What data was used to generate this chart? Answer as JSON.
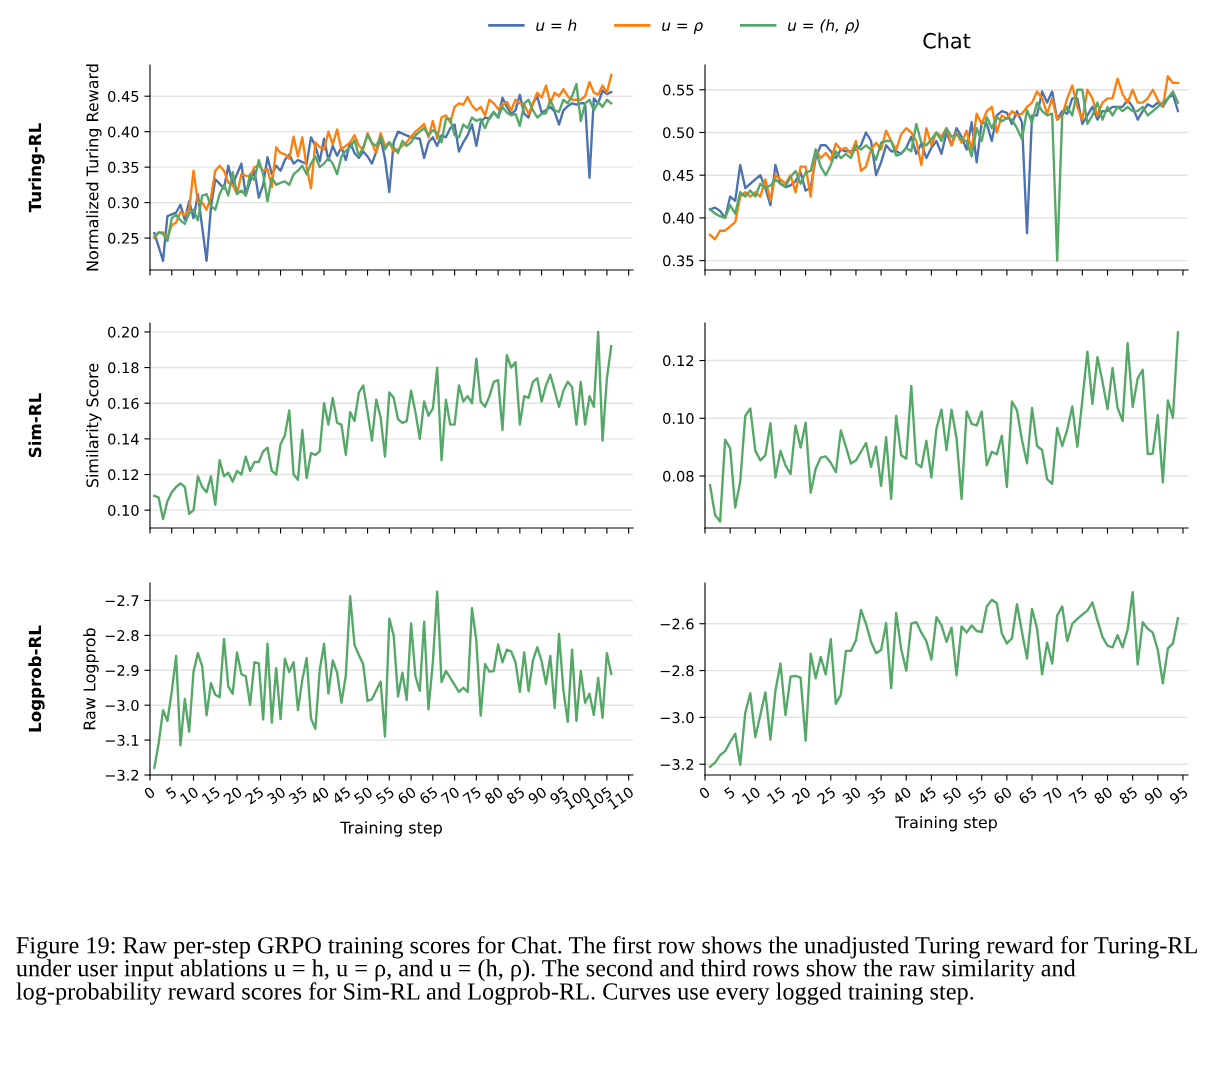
{
  "chart_data": [
    {
      "type": "line",
      "ylabel": "Normalized Turing Reward",
      "annotations": [
        "Turing-RL",
        "Figure 19: Raw per-step GRPO training scores for Chat. The first row shows the unadjusted Turing reward for Turing-RL under user input ablations u = h, u = ρ, and u = (h, ρ). The second and third rows show the raw similarity and log-probability reward scores for Sim-RL and Logprob-RL. Curves use every logged training step."
      ],
      "xlim": [
        0,
        111
      ],
      "xticks": [
        0,
        5,
        10,
        15,
        20,
        25,
        30,
        35,
        40,
        45,
        50,
        55,
        60,
        65,
        70,
        75,
        80,
        85,
        90,
        95,
        100,
        105,
        110
      ],
      "ylim": [
        0.205,
        0.494
      ],
      "yticks": [
        {
          "value": 0.25,
          "label": "0.25"
        },
        {
          "value": 0.3,
          "label": "0.30"
        },
        {
          "value": 0.35,
          "label": "0.35"
        },
        {
          "value": 0.4,
          "label": "0.40"
        },
        {
          "value": 0.45,
          "label": "0.45"
        }
      ],
      "grid": "y",
      "legend": "top",
      "tick_labels": "y",
      "x": [
        1,
        2,
        3,
        4,
        5,
        6,
        7,
        8,
        9,
        10,
        11,
        12,
        13,
        14,
        15,
        16,
        17,
        18,
        19,
        20,
        21,
        22,
        23,
        24,
        25,
        26,
        27,
        28,
        29,
        30,
        31,
        32,
        33,
        34,
        35,
        36,
        37,
        38,
        39,
        40,
        41,
        42,
        43,
        44,
        45,
        46,
        47,
        48,
        49,
        50,
        51,
        52,
        53,
        54,
        55,
        56,
        57,
        58,
        59,
        60,
        61,
        62,
        63,
        64,
        65,
        66,
        67,
        68,
        69,
        70,
        71,
        72,
        73,
        74,
        75,
        76,
        77,
        78,
        79,
        80,
        81,
        82,
        83,
        84,
        85,
        86,
        87,
        88,
        89,
        90,
        91,
        92,
        93,
        94,
        95,
        96,
        97,
        98,
        99,
        100,
        101,
        102,
        103,
        104,
        105,
        106
      ],
      "series": [
        {
          "name": "u = h",
          "color": "#4c72b0",
          "x": [
            1,
            3,
            4,
            6,
            7,
            8,
            9,
            10,
            11,
            13,
            14,
            15,
            17,
            18,
            19,
            21,
            22,
            23,
            24,
            25,
            26,
            27,
            28,
            29,
            30,
            31,
            32,
            33,
            34,
            35,
            36,
            37,
            38,
            39,
            40,
            41,
            42,
            43,
            44,
            45,
            46,
            47,
            48,
            49,
            50,
            51,
            52,
            53,
            54,
            55,
            56,
            57,
            60,
            62,
            63,
            64,
            65,
            66,
            67,
            68,
            69,
            70,
            71,
            72,
            73,
            74,
            75,
            76,
            77,
            78,
            79,
            80,
            81,
            82,
            83,
            84,
            85,
            86,
            87,
            88,
            89,
            90,
            91,
            92,
            93,
            94,
            95,
            96,
            97,
            98,
            99,
            100,
            101,
            102,
            103,
            104,
            105,
            106
          ],
          "values": [
            0.257,
            0.218,
            0.281,
            0.286,
            0.297,
            0.276,
            0.302,
            0.278,
            0.312,
            0.218,
            0.293,
            0.333,
            0.32,
            0.352,
            0.326,
            0.355,
            0.31,
            0.33,
            0.345,
            0.307,
            0.325,
            0.364,
            0.34,
            0.352,
            0.345,
            0.36,
            0.368,
            0.355,
            0.36,
            0.357,
            0.355,
            0.392,
            0.38,
            0.358,
            0.39,
            0.36,
            0.38,
            0.366,
            0.378,
            0.36,
            0.385,
            0.37,
            0.363,
            0.372,
            0.365,
            0.355,
            0.372,
            0.39,
            0.362,
            0.315,
            0.385,
            0.4,
            0.392,
            0.39,
            0.363,
            0.385,
            0.392,
            0.38,
            0.395,
            0.392,
            0.405,
            0.41,
            0.372,
            0.385,
            0.395,
            0.41,
            0.38,
            0.413,
            0.42,
            0.418,
            0.427,
            0.42,
            0.448,
            0.435,
            0.425,
            0.43,
            0.452,
            0.425,
            0.42,
            0.44,
            0.45,
            0.427,
            0.43,
            0.435,
            0.428,
            0.41,
            0.43,
            0.436,
            0.44,
            0.438,
            0.44,
            0.44,
            0.335,
            0.447,
            0.44,
            0.458,
            0.453,
            0.456
          ]
        },
        {
          "name": "u = ρ",
          "color": "#ff7f0e",
          "values": [
            0.25,
            0.258,
            0.258,
            0.25,
            0.268,
            0.272,
            0.287,
            0.282,
            0.29,
            0.345,
            0.3,
            0.3,
            0.29,
            0.307,
            0.345,
            0.352,
            0.345,
            0.328,
            0.325,
            0.312,
            0.34,
            0.338,
            0.337,
            0.35,
            0.352,
            0.345,
            0.347,
            0.322,
            0.378,
            0.37,
            0.368,
            0.362,
            0.393,
            0.365,
            0.392,
            0.35,
            0.32,
            0.385,
            0.378,
            0.375,
            0.4,
            0.382,
            0.403,
            0.375,
            0.38,
            0.385,
            0.395,
            0.38,
            0.375,
            0.398,
            0.384,
            0.37,
            0.398,
            0.38,
            0.385,
            0.372,
            0.375,
            0.38,
            0.385,
            0.393,
            0.4,
            0.405,
            0.411,
            0.392,
            0.415,
            0.39,
            0.42,
            0.423,
            0.413,
            0.435,
            0.44,
            0.438,
            0.449,
            0.437,
            0.43,
            0.435,
            0.423,
            0.445,
            0.44,
            0.432,
            0.437,
            0.442,
            0.43,
            0.445,
            0.44,
            0.438,
            0.425,
            0.44,
            0.455,
            0.448,
            0.465,
            0.44,
            0.455,
            0.45,
            0.46,
            0.45,
            0.445,
            0.445,
            0.445,
            0.45,
            0.47,
            0.455,
            0.452,
            0.465,
            0.455,
            0.48
          ]
        },
        {
          "name": "u = (h, ρ)",
          "color": "#55a868",
          "values": [
            0.252,
            0.258,
            0.256,
            0.246,
            0.278,
            0.283,
            0.275,
            0.27,
            0.285,
            0.29,
            0.275,
            0.31,
            0.312,
            0.295,
            0.29,
            0.312,
            0.325,
            0.31,
            0.343,
            0.312,
            0.317,
            0.31,
            0.34,
            0.332,
            0.36,
            0.34,
            0.302,
            0.335,
            0.325,
            0.328,
            0.33,
            0.325,
            0.34,
            0.345,
            0.352,
            0.34,
            0.355,
            0.365,
            0.35,
            0.355,
            0.363,
            0.355,
            0.34,
            0.365,
            0.373,
            0.378,
            0.388,
            0.366,
            0.378,
            0.395,
            0.384,
            0.38,
            0.393,
            0.375,
            0.385,
            0.378,
            0.37,
            0.387,
            0.38,
            0.385,
            0.395,
            0.4,
            0.405,
            0.395,
            0.402,
            0.398,
            0.385,
            0.418,
            0.418,
            0.395,
            0.392,
            0.41,
            0.405,
            0.42,
            0.415,
            0.418,
            0.405,
            0.42,
            0.428,
            0.42,
            0.435,
            0.427,
            0.423,
            0.425,
            0.408,
            0.44,
            0.445,
            0.43,
            0.42,
            0.425,
            0.426,
            0.445,
            0.43,
            0.428,
            0.445,
            0.44,
            0.45,
            0.467,
            0.415,
            0.44,
            0.445,
            0.43,
            0.442,
            0.435,
            0.445,
            0.44
          ]
        }
      ]
    },
    {
      "type": "line",
      "title": "Chat",
      "xlim": [
        0,
        96
      ],
      "xticks": [
        0,
        5,
        10,
        15,
        20,
        25,
        30,
        35,
        40,
        45,
        50,
        55,
        60,
        65,
        70,
        75,
        80,
        85,
        90,
        95
      ],
      "ylim": [
        0.339,
        0.579
      ],
      "yticks": [
        {
          "value": 0.35,
          "label": "0.35"
        },
        {
          "value": 0.4,
          "label": "0.40"
        },
        {
          "value": 0.45,
          "label": "0.45"
        },
        {
          "value": 0.5,
          "label": "0.50"
        },
        {
          "value": 0.55,
          "label": "0.55"
        }
      ],
      "grid": "y",
      "tick_labels": "y",
      "x": [
        1,
        2,
        3,
        4,
        5,
        6,
        7,
        8,
        9,
        10,
        11,
        12,
        13,
        14,
        15,
        16,
        17,
        18,
        19,
        20,
        21,
        22,
        23,
        24,
        25,
        26,
        27,
        28,
        29,
        30,
        31,
        32,
        33,
        34,
        35,
        36,
        37,
        38,
        39,
        40,
        41,
        42,
        43,
        44,
        45,
        46,
        47,
        48,
        49,
        50,
        51,
        52,
        53,
        54,
        55,
        56,
        57,
        58,
        59,
        60,
        61,
        62,
        63,
        64,
        65,
        66,
        67,
        68,
        69,
        70,
        71,
        72,
        73,
        74,
        75,
        76,
        77,
        78,
        79,
        80,
        81,
        82,
        83,
        84,
        85,
        86,
        87,
        88,
        89,
        90,
        91,
        92,
        93,
        94
      ],
      "series": [
        {
          "color": "#4c72b0",
          "values": [
            0.41,
            0.412,
            0.408,
            0.4,
            0.425,
            0.42,
            0.462,
            0.435,
            0.44,
            0.445,
            0.45,
            0.435,
            0.415,
            0.462,
            0.44,
            0.436,
            0.438,
            0.443,
            0.453,
            0.432,
            0.435,
            0.47,
            0.485,
            0.485,
            0.478,
            0.47,
            0.48,
            0.478,
            0.478,
            0.48,
            0.485,
            0.5,
            0.49,
            0.45,
            0.465,
            0.485,
            0.478,
            0.478,
            0.475,
            0.482,
            0.495,
            0.475,
            0.487,
            0.47,
            0.482,
            0.49,
            0.475,
            0.5,
            0.485,
            0.505,
            0.495,
            0.48,
            0.512,
            0.465,
            0.512,
            0.51,
            0.49,
            0.52,
            0.525,
            0.523,
            0.51,
            0.525,
            0.512,
            0.382,
            0.52,
            0.52,
            0.548,
            0.535,
            0.548,
            0.515,
            0.525,
            0.522,
            0.54,
            0.54,
            0.51,
            0.52,
            0.53,
            0.515,
            0.525,
            0.525,
            0.53,
            0.53,
            0.53,
            0.538,
            0.53,
            0.515,
            0.525,
            0.533,
            0.53,
            0.535,
            0.53,
            0.54,
            0.545,
            0.525
          ]
        },
        {
          "color": "#ff7f0e",
          "values": [
            0.38,
            0.375,
            0.385,
            0.385,
            0.39,
            0.395,
            0.425,
            0.43,
            0.425,
            0.43,
            0.425,
            0.445,
            0.42,
            0.45,
            0.445,
            0.44,
            0.45,
            0.43,
            0.46,
            0.46,
            0.425,
            0.48,
            0.47,
            0.476,
            0.468,
            0.487,
            0.48,
            0.482,
            0.475,
            0.49,
            0.455,
            0.46,
            0.48,
            0.488,
            0.48,
            0.502,
            0.49,
            0.48,
            0.498,
            0.505,
            0.5,
            0.49,
            0.462,
            0.505,
            0.485,
            0.5,
            0.495,
            0.505,
            0.485,
            0.5,
            0.488,
            0.502,
            0.48,
            0.522,
            0.51,
            0.525,
            0.53,
            0.5,
            0.52,
            0.516,
            0.525,
            0.52,
            0.522,
            0.53,
            0.535,
            0.548,
            0.54,
            0.522,
            0.54,
            0.515,
            0.52,
            0.54,
            0.555,
            0.53,
            0.515,
            0.55,
            0.54,
            0.52,
            0.535,
            0.54,
            0.54,
            0.563,
            0.545,
            0.535,
            0.55,
            0.535,
            0.535,
            0.54,
            0.55,
            0.538,
            0.53,
            0.566,
            0.558,
            0.558
          ]
        },
        {
          "color": "#55a868",
          "values": [
            0.41,
            0.405,
            0.402,
            0.4,
            0.415,
            0.405,
            0.43,
            0.425,
            0.432,
            0.425,
            0.44,
            0.435,
            0.438,
            0.445,
            0.44,
            0.437,
            0.448,
            0.455,
            0.44,
            0.453,
            0.455,
            0.48,
            0.46,
            0.45,
            0.462,
            0.478,
            0.47,
            0.475,
            0.47,
            0.485,
            0.48,
            0.485,
            0.48,
            0.468,
            0.488,
            0.49,
            0.49,
            0.473,
            0.475,
            0.482,
            0.478,
            0.51,
            0.488,
            0.485,
            0.492,
            0.5,
            0.49,
            0.505,
            0.495,
            0.498,
            0.492,
            0.49,
            0.472,
            0.505,
            0.49,
            0.518,
            0.505,
            0.518,
            0.513,
            0.517,
            0.515,
            0.505,
            0.492,
            0.526,
            0.512,
            0.535,
            0.525,
            0.52,
            0.522,
            0.35,
            0.52,
            0.53,
            0.52,
            0.55,
            0.55,
            0.51,
            0.52,
            0.535,
            0.515,
            0.53,
            0.52,
            0.53,
            0.525,
            0.53,
            0.525,
            0.525,
            0.53,
            0.52,
            0.525,
            0.53,
            0.535,
            0.54,
            0.548,
            0.535
          ]
        }
      ]
    },
    {
      "type": "line",
      "ylabel": "Similarity Score",
      "annotations": [
        "Sim-RL"
      ],
      "xlim": [
        0,
        111
      ],
      "xticks": [
        0,
        5,
        10,
        15,
        20,
        25,
        30,
        35,
        40,
        45,
        50,
        55,
        60,
        65,
        70,
        75,
        80,
        85,
        90,
        95,
        100,
        105,
        110
      ],
      "ylim": [
        0.09,
        0.205
      ],
      "yticks": [
        {
          "value": 0.1,
          "label": "0.10"
        },
        {
          "value": 0.12,
          "label": "0.12"
        },
        {
          "value": 0.14,
          "label": "0.14"
        },
        {
          "value": 0.16,
          "label": "0.16"
        },
        {
          "value": 0.18,
          "label": "0.18"
        },
        {
          "value": 0.2,
          "label": "0.20"
        }
      ],
      "grid": "y",
      "tick_labels": "y",
      "x": [
        1,
        2,
        3,
        4,
        5,
        6,
        7,
        8,
        9,
        10,
        11,
        12,
        13,
        14,
        15,
        16,
        17,
        18,
        19,
        20,
        21,
        22,
        23,
        24,
        25,
        26,
        27,
        28,
        29,
        30,
        31,
        32,
        33,
        34,
        35,
        36,
        37,
        38,
        39,
        40,
        41,
        42,
        43,
        44,
        45,
        46,
        47,
        48,
        49,
        50,
        51,
        52,
        53,
        54,
        55,
        56,
        57,
        58,
        59,
        60,
        61,
        62,
        63,
        64,
        65,
        66,
        67,
        68,
        69,
        70,
        71,
        72,
        73,
        74,
        75,
        76,
        77,
        78,
        79,
        80,
        81,
        82,
        83,
        84,
        85,
        86,
        87,
        88,
        89,
        90,
        91,
        92,
        93,
        94,
        95,
        96,
        97,
        98,
        99,
        100,
        101,
        102,
        103,
        104,
        105,
        106
      ],
      "series": [
        {
          "color": "#55a868",
          "values": [
            0.108,
            0.107,
            0.095,
            0.105,
            0.11,
            0.113,
            0.115,
            0.113,
            0.098,
            0.1,
            0.119,
            0.113,
            0.11,
            0.119,
            0.103,
            0.128,
            0.119,
            0.121,
            0.116,
            0.122,
            0.12,
            0.13,
            0.122,
            0.127,
            0.127,
            0.133,
            0.135,
            0.122,
            0.12,
            0.137,
            0.142,
            0.156,
            0.12,
            0.117,
            0.145,
            0.118,
            0.132,
            0.131,
            0.133,
            0.16,
            0.148,
            0.163,
            0.149,
            0.148,
            0.131,
            0.155,
            0.15,
            0.166,
            0.17,
            0.155,
            0.139,
            0.162,
            0.152,
            0.13,
            0.166,
            0.163,
            0.151,
            0.149,
            0.15,
            0.167,
            0.155,
            0.14,
            0.161,
            0.153,
            0.157,
            0.18,
            0.128,
            0.162,
            0.148,
            0.148,
            0.17,
            0.161,
            0.164,
            0.16,
            0.185,
            0.161,
            0.158,
            0.164,
            0.172,
            0.173,
            0.145,
            0.187,
            0.18,
            0.183,
            0.148,
            0.164,
            0.163,
            0.172,
            0.174,
            0.161,
            0.17,
            0.176,
            0.167,
            0.158,
            0.167,
            0.172,
            0.169,
            0.148,
            0.172,
            0.148,
            0.164,
            0.158,
            0.2,
            0.139,
            0.174,
            0.192
          ]
        }
      ]
    },
    {
      "type": "line",
      "xlim": [
        0,
        96
      ],
      "xticks": [
        0,
        5,
        10,
        15,
        20,
        25,
        30,
        35,
        40,
        45,
        50,
        55,
        60,
        65,
        70,
        75,
        80,
        85,
        90,
        95
      ],
      "ylim": [
        0.062,
        0.133
      ],
      "yticks": [
        {
          "value": 0.08,
          "label": "0.08"
        },
        {
          "value": 0.1,
          "label": "0.10"
        },
        {
          "value": 0.12,
          "label": "0.12"
        }
      ],
      "grid": "y",
      "tick_labels": "y",
      "x": [
        1,
        2,
        3,
        4,
        5,
        6,
        7,
        8,
        9,
        10,
        11,
        12,
        13,
        14,
        15,
        16,
        17,
        18,
        19,
        20,
        21,
        22,
        23,
        24,
        25,
        26,
        27,
        28,
        29,
        30,
        31,
        32,
        33,
        34,
        35,
        36,
        37,
        38,
        39,
        40,
        41,
        42,
        43,
        44,
        45,
        46,
        47,
        48,
        49,
        50,
        51,
        52,
        53,
        54,
        55,
        56,
        57,
        58,
        59,
        60,
        61,
        62,
        63,
        64,
        65,
        66,
        67,
        68,
        69,
        70,
        71,
        72,
        73,
        74,
        75,
        76,
        77,
        78,
        79,
        80,
        81,
        82,
        83,
        84,
        85,
        86,
        87,
        88,
        89,
        90,
        91,
        92,
        93,
        94
      ],
      "series": [
        {
          "color": "#55a868",
          "values": [
            0.0768,
            0.0665,
            0.0642,
            0.0926,
            0.0896,
            0.0691,
            0.078,
            0.1008,
            0.1034,
            0.0888,
            0.0854,
            0.0872,
            0.0983,
            0.0795,
            0.0887,
            0.0837,
            0.0807,
            0.0975,
            0.0899,
            0.0985,
            0.0742,
            0.0825,
            0.0864,
            0.0868,
            0.0846,
            0.0813,
            0.0958,
            0.0902,
            0.0843,
            0.0854,
            0.0884,
            0.0914,
            0.0831,
            0.0902,
            0.0766,
            0.0935,
            0.0721,
            0.1008,
            0.0872,
            0.086,
            0.1112,
            0.0843,
            0.0831,
            0.0922,
            0.0795,
            0.0964,
            0.103,
            0.089,
            0.103,
            0.0931,
            0.0721,
            0.1024,
            0.0981,
            0.0975,
            0.1024,
            0.0837,
            0.0884,
            0.0875,
            0.094,
            0.0762,
            0.1058,
            0.1028,
            0.0925,
            0.0844,
            0.1036,
            0.0904,
            0.089,
            0.0789,
            0.0773,
            0.0967,
            0.0904,
            0.0961,
            0.1041,
            0.0902,
            0.1062,
            0.1231,
            0.105,
            0.1212,
            0.1127,
            0.1032,
            0.1174,
            0.1036,
            0.0991,
            0.126,
            0.1039,
            0.1138,
            0.1168,
            0.0876,
            0.0878,
            0.1011,
            0.0778,
            0.1062,
            0.1002,
            0.1298
          ]
        }
      ]
    },
    {
      "type": "line",
      "ylabel": "Raw Logprob",
      "xlabel": "Training step",
      "annotations": [
        "Logprob-RL"
      ],
      "xlim": [
        0,
        111
      ],
      "xticks": [
        0,
        5,
        10,
        15,
        20,
        25,
        30,
        35,
        40,
        45,
        50,
        55,
        60,
        65,
        70,
        75,
        80,
        85,
        90,
        95,
        100,
        105,
        110
      ],
      "ylim": [
        -3.2,
        -2.65
      ],
      "yticks": [
        {
          "value": -3.2,
          "label": "−3.2"
        },
        {
          "value": -3.1,
          "label": "−3.1"
        },
        {
          "value": -3.0,
          "label": "−3.0"
        },
        {
          "value": -2.9,
          "label": "−2.9"
        },
        {
          "value": -2.8,
          "label": "−2.8"
        },
        {
          "value": -2.7,
          "label": "−2.7"
        }
      ],
      "grid": "y",
      "x": [
        1,
        2,
        3,
        4,
        5,
        6,
        7,
        8,
        9,
        10,
        11,
        12,
        13,
        14,
        15,
        16,
        17,
        18,
        19,
        20,
        21,
        22,
        23,
        24,
        25,
        26,
        27,
        28,
        29,
        30,
        31,
        32,
        33,
        34,
        35,
        36,
        37,
        38,
        39,
        40,
        41,
        42,
        43,
        44,
        45,
        46,
        47,
        48,
        49,
        50,
        51,
        52,
        53,
        54,
        55,
        56,
        57,
        58,
        59,
        60,
        61,
        62,
        63,
        64,
        65,
        66,
        67,
        68,
        69,
        70,
        71,
        72,
        73,
        74,
        75,
        76,
        77,
        78,
        79,
        80,
        81,
        82,
        83,
        84,
        85,
        86,
        87,
        88,
        89,
        90,
        91,
        92,
        93,
        94,
        95,
        96,
        97,
        98,
        99,
        100,
        101,
        102,
        103,
        104,
        105,
        106
      ],
      "series": [
        {
          "color": "#55a868",
          "values": [
            -3.179,
            -3.108,
            -3.014,
            -3.045,
            -2.962,
            -2.859,
            -3.115,
            -2.982,
            -3.076,
            -2.904,
            -2.851,
            -2.889,
            -3.029,
            -2.937,
            -2.97,
            -2.977,
            -2.81,
            -2.947,
            -2.967,
            -2.849,
            -2.911,
            -2.917,
            -2.999,
            -2.877,
            -2.88,
            -3.041,
            -2.824,
            -3.05,
            -2.894,
            -3.04,
            -2.867,
            -2.905,
            -2.877,
            -3.014,
            -2.927,
            -2.865,
            -3.038,
            -3.068,
            -2.9,
            -2.824,
            -2.967,
            -2.872,
            -2.907,
            -2.993,
            -2.915,
            -2.688,
            -2.828,
            -2.856,
            -2.883,
            -2.988,
            -2.983,
            -2.957,
            -2.932,
            -3.09,
            -2.752,
            -2.801,
            -2.975,
            -2.907,
            -2.985,
            -2.766,
            -2.917,
            -2.959,
            -2.761,
            -3.012,
            -2.877,
            -2.675,
            -2.934,
            -2.902,
            -2.922,
            -2.942,
            -2.962,
            -2.95,
            -2.962,
            -2.722,
            -2.815,
            -3.03,
            -2.882,
            -2.904,
            -2.902,
            -2.826,
            -2.877,
            -2.841,
            -2.846,
            -2.877,
            -2.962,
            -2.849,
            -2.96,
            -2.872,
            -2.834,
            -2.874,
            -2.939,
            -2.859,
            -3.008,
            -2.796,
            -2.957,
            -3.048,
            -2.841,
            -3.045,
            -2.902,
            -2.993,
            -2.967,
            -3.028,
            -2.922,
            -3.036,
            -2.851,
            -2.91
          ]
        }
      ]
    },
    {
      "type": "line",
      "xlabel": "Training step",
      "xlim": [
        0,
        96
      ],
      "xticks": [
        0,
        5,
        10,
        15,
        20,
        25,
        30,
        35,
        40,
        45,
        50,
        55,
        60,
        65,
        70,
        75,
        80,
        85,
        90,
        95
      ],
      "ylim": [
        -3.246,
        -2.426
      ],
      "yticks": [
        {
          "value": -3.2,
          "label": "−3.2"
        },
        {
          "value": -3.0,
          "label": "−3.0"
        },
        {
          "value": -2.8,
          "label": "−2.8"
        },
        {
          "value": -2.6,
          "label": "−2.6"
        }
      ],
      "grid": "y",
      "x": [
        1,
        2,
        3,
        4,
        5,
        6,
        7,
        8,
        9,
        10,
        11,
        12,
        13,
        14,
        15,
        16,
        17,
        18,
        19,
        20,
        21,
        22,
        23,
        24,
        25,
        26,
        27,
        28,
        29,
        30,
        31,
        32,
        33,
        34,
        35,
        36,
        37,
        38,
        39,
        40,
        41,
        42,
        43,
        44,
        45,
        46,
        47,
        48,
        49,
        50,
        51,
        52,
        53,
        54,
        55,
        56,
        57,
        58,
        59,
        60,
        61,
        62,
        63,
        64,
        65,
        66,
        67,
        68,
        69,
        70,
        71,
        72,
        73,
        74,
        75,
        76,
        77,
        78,
        79,
        80,
        81,
        82,
        83,
        84,
        85,
        86,
        87,
        88,
        89,
        90,
        91,
        92,
        93,
        94
      ],
      "series": [
        {
          "color": "#55a868",
          "values": [
            -3.211,
            -3.193,
            -3.161,
            -3.144,
            -3.105,
            -3.07,
            -3.203,
            -2.981,
            -2.897,
            -3.084,
            -2.99,
            -2.893,
            -3.095,
            -2.886,
            -2.77,
            -2.99,
            -2.826,
            -2.823,
            -2.83,
            -3.099,
            -2.728,
            -2.833,
            -2.742,
            -2.816,
            -2.666,
            -2.942,
            -2.903,
            -2.716,
            -2.716,
            -2.67,
            -2.541,
            -2.6,
            -2.677,
            -2.726,
            -2.712,
            -2.597,
            -2.875,
            -2.554,
            -2.709,
            -2.8,
            -2.6,
            -2.593,
            -2.638,
            -2.674,
            -2.753,
            -2.572,
            -2.607,
            -2.677,
            -2.617,
            -2.821,
            -2.611,
            -2.638,
            -2.607,
            -2.631,
            -2.635,
            -2.526,
            -2.498,
            -2.512,
            -2.642,
            -2.684,
            -2.663,
            -2.516,
            -2.635,
            -2.749,
            -2.537,
            -2.621,
            -2.816,
            -2.681,
            -2.77,
            -2.565,
            -2.526,
            -2.674,
            -2.6,
            -2.579,
            -2.561,
            -2.544,
            -2.509,
            -2.586,
            -2.656,
            -2.694,
            -2.701,
            -2.649,
            -2.701,
            -2.625,
            -2.465,
            -2.774,
            -2.593,
            -2.621,
            -2.638,
            -2.712,
            -2.854,
            -2.705,
            -2.684,
            -2.576
          ]
        }
      ]
    }
  ]
}
